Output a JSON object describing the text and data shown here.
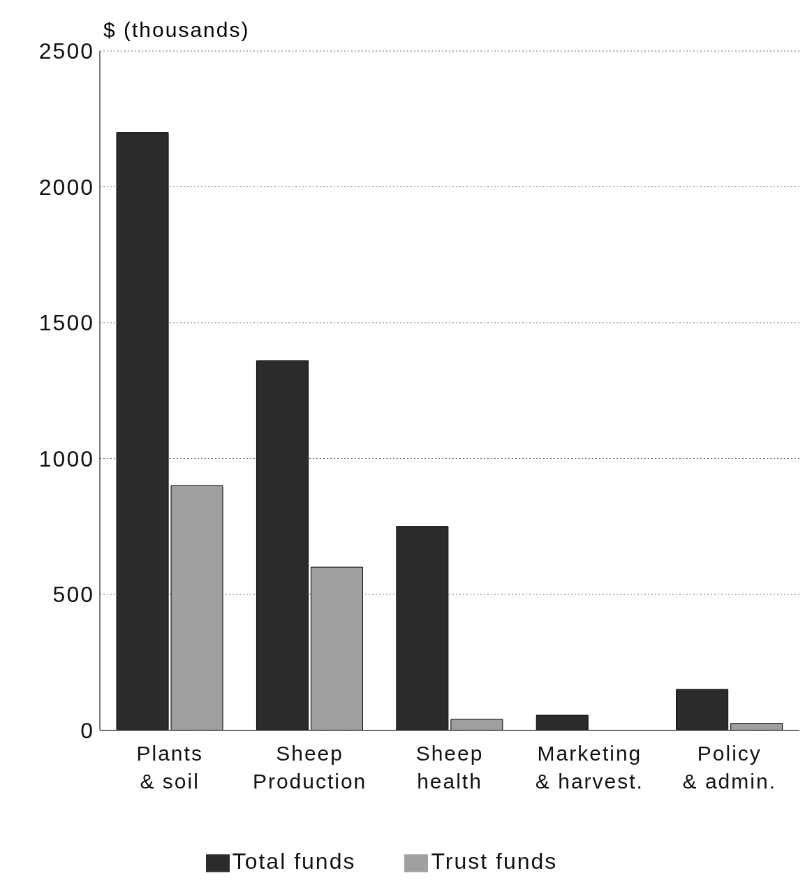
{
  "chart_data": {
    "type": "bar",
    "ylabel": "$ (thousands)",
    "categories": [
      "Plants\n& soil",
      "Sheep\nProduction",
      "Sheep\nhealth",
      "Marketing\n& harvest.",
      "Policy\n& admin."
    ],
    "series": [
      {
        "name": "Total funds",
        "color": "#2b2b2b",
        "values": [
          2200,
          1360,
          750,
          55,
          150
        ]
      },
      {
        "name": "Trust funds",
        "color": "#a0a0a0",
        "values": [
          900,
          600,
          40,
          0,
          25
        ]
      }
    ],
    "ylim": [
      0,
      2500
    ],
    "yticks": [
      0,
      500,
      1000,
      1500,
      2000,
      2500
    ],
    "grid": "y",
    "legend": "bottom"
  }
}
